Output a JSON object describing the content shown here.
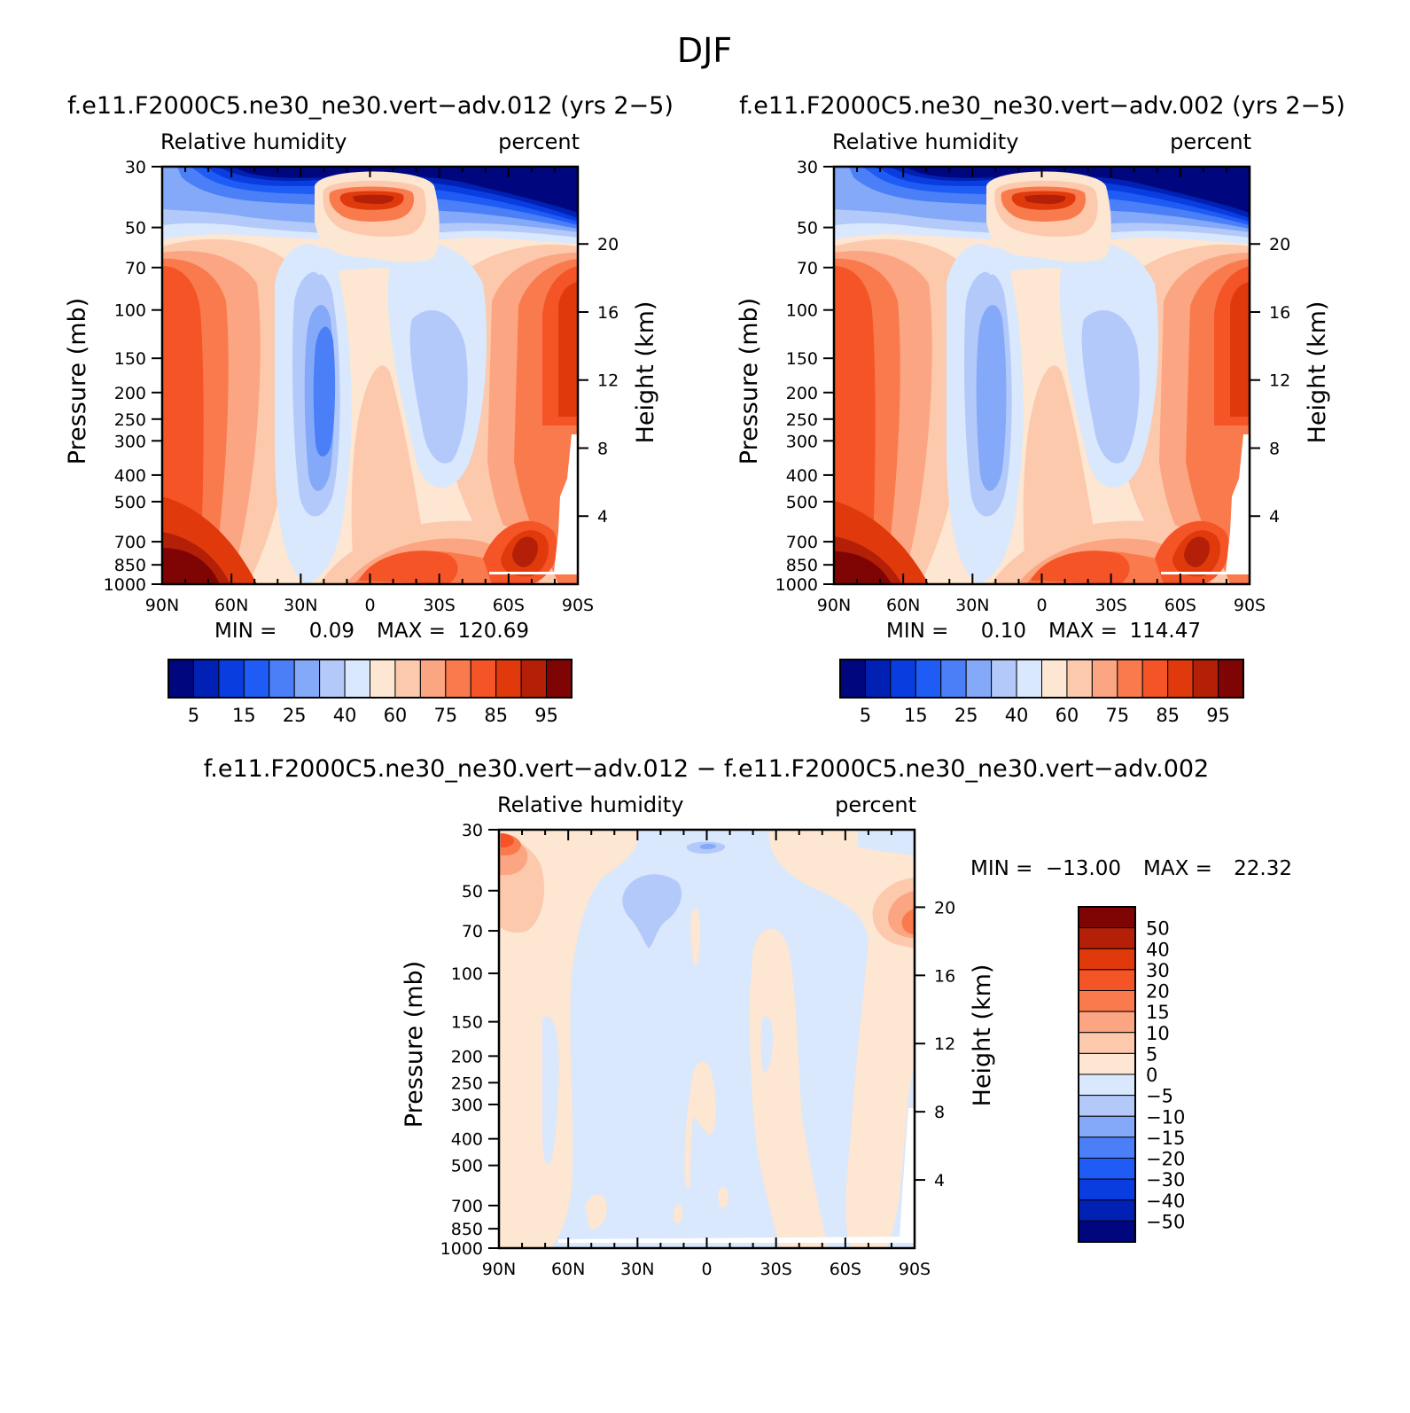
{
  "figure_title": "DJF",
  "chart_data": [
    {
      "type": "contour",
      "title": "f.e11.F2000C5.ne30_ne30.vert−adv.012 (yrs 2−5)",
      "left_string": "Relative humidity",
      "right_string": "percent",
      "xlabel": "",
      "ylabel": "Pressure (mb)",
      "y2label": "Height (km)",
      "x_ticks": [
        "90N",
        "60N",
        "30N",
        "0",
        "30S",
        "60S",
        "90S"
      ],
      "y_ticks": [
        "30",
        "50",
        "70",
        "100",
        "150",
        "200",
        "250",
        "300",
        "400",
        "500",
        "700",
        "850",
        "1000"
      ],
      "y2_ticks": [
        "20",
        "16",
        "12",
        "8",
        "4"
      ],
      "stats": {
        "min_label": "MIN =",
        "min": "0.09",
        "max_label": "MAX =",
        "max": "120.69"
      },
      "colorbar": {
        "orientation": "horizontal",
        "labels": [
          "5",
          "15",
          "25",
          "40",
          "60",
          "75",
          "85",
          "95"
        ],
        "colors": [
          "#00067e",
          "#0021b3",
          "#0a3de0",
          "#1f5cf5",
          "#4a7ff7",
          "#84a9f8",
          "#b3c9fa",
          "#d9e8fd",
          "#fde6d2",
          "#fcc9ad",
          "#fba582",
          "#f97b4d",
          "#f55427",
          "#e03a0c",
          "#b31f07",
          "#7f0505"
        ]
      }
    },
    {
      "type": "contour",
      "title": "f.e11.F2000C5.ne30_ne30.vert−adv.002 (yrs 2−5)",
      "left_string": "Relative humidity",
      "right_string": "percent",
      "xlabel": "",
      "ylabel": "Pressure (mb)",
      "y2label": "Height (km)",
      "x_ticks": [
        "90N",
        "60N",
        "30N",
        "0",
        "30S",
        "60S",
        "90S"
      ],
      "y_ticks": [
        "30",
        "50",
        "70",
        "100",
        "150",
        "200",
        "250",
        "300",
        "400",
        "500",
        "700",
        "850",
        "1000"
      ],
      "y2_ticks": [
        "20",
        "16",
        "12",
        "8",
        "4"
      ],
      "stats": {
        "min_label": "MIN =",
        "min": "0.10",
        "max_label": "MAX =",
        "max": "114.47"
      },
      "colorbar": {
        "orientation": "horizontal",
        "labels": [
          "5",
          "15",
          "25",
          "40",
          "60",
          "75",
          "85",
          "95"
        ],
        "colors": [
          "#00067e",
          "#0021b3",
          "#0a3de0",
          "#1f5cf5",
          "#4a7ff7",
          "#84a9f8",
          "#b3c9fa",
          "#d9e8fd",
          "#fde6d2",
          "#fcc9ad",
          "#fba582",
          "#f97b4d",
          "#f55427",
          "#e03a0c",
          "#b31f07",
          "#7f0505"
        ]
      }
    },
    {
      "type": "contour",
      "title": "f.e11.F2000C5.ne30_ne30.vert−adv.012 − f.e11.F2000C5.ne30_ne30.vert−adv.002",
      "left_string": "Relative humidity",
      "right_string": "percent",
      "xlabel": "",
      "ylabel": "Pressure (mb)",
      "y2label": "Height (km)",
      "x_ticks": [
        "90N",
        "60N",
        "30N",
        "0",
        "30S",
        "60S",
        "90S"
      ],
      "y_ticks": [
        "30",
        "50",
        "70",
        "100",
        "150",
        "200",
        "250",
        "300",
        "400",
        "500",
        "700",
        "850",
        "1000"
      ],
      "y2_ticks": [
        "20",
        "16",
        "12",
        "8",
        "4"
      ],
      "stats": {
        "min_label": "MIN =",
        "min": "−13.00",
        "max_label": "MAX =",
        "max": "22.32"
      },
      "colorbar": {
        "orientation": "vertical",
        "labels": [
          "50",
          "40",
          "30",
          "20",
          "15",
          "10",
          "5",
          "0",
          "−5",
          "−10",
          "−15",
          "−20",
          "−30",
          "−40",
          "−50"
        ],
        "colors": [
          "#7f0505",
          "#b31f07",
          "#e03a0c",
          "#f55427",
          "#f97b4d",
          "#fba582",
          "#fcc9ad",
          "#fde6d2",
          "#d9e8fd",
          "#b3c9fa",
          "#84a9f8",
          "#4a7ff7",
          "#1f5cf5",
          "#0a3de0",
          "#0021b3",
          "#00067e"
        ]
      }
    }
  ]
}
